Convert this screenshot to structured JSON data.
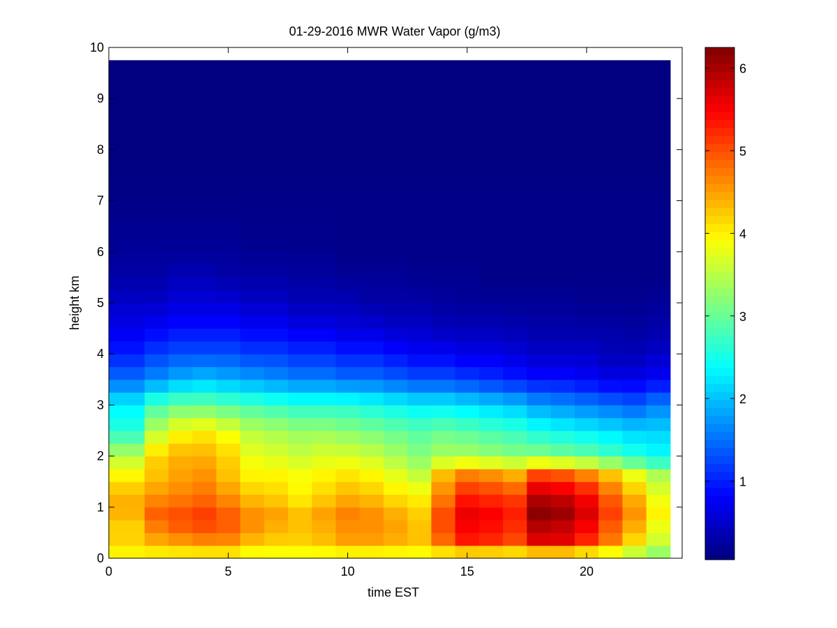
{
  "chart_data": {
    "type": "heatmap",
    "title": "01-29-2016 MWR Water Vapor (g/m3)",
    "xlabel": "time EST",
    "ylabel": "height km",
    "xlim": [
      0,
      24
    ],
    "ylim": [
      0,
      10
    ],
    "xticks": [
      0,
      5,
      10,
      15,
      20
    ],
    "yticks": [
      0,
      1,
      2,
      3,
      4,
      5,
      6,
      7,
      8,
      9,
      10
    ],
    "colormap": "jet",
    "colorbar": {
      "min": 0.05,
      "max": 6.25,
      "ticks": [
        1,
        2,
        3,
        4,
        5,
        6
      ]
    },
    "grid": false,
    "data_extent": {
      "x": [
        0,
        23.5
      ],
      "y": [
        0,
        9.75
      ]
    },
    "time_columns": [
      0,
      1,
      2,
      3,
      4,
      5,
      6,
      7,
      8,
      9,
      10,
      11,
      12,
      13,
      14,
      15,
      16,
      17,
      18,
      19,
      20,
      21,
      22,
      23
    ],
    "profile_heights_km": [
      0.05,
      0.3,
      0.6,
      0.9,
      1.2,
      1.6,
      2.0,
      2.5,
      3.0,
      3.5,
      4.0,
      4.5,
      5.0,
      5.5,
      6.0,
      7.0,
      8.0,
      9.75
    ],
    "values": [
      [
        3.9,
        4.2,
        4.2,
        4.4,
        4.4,
        4.0,
        3.5,
        2.6,
        2.3,
        1.5,
        1.0,
        0.7,
        0.5,
        0.3,
        0.2,
        0.1,
        0.05,
        0.05
      ],
      [
        3.9,
        4.2,
        4.2,
        4.4,
        4.4,
        4.0,
        3.5,
        2.6,
        2.3,
        1.5,
        1.0,
        0.7,
        0.5,
        0.3,
        0.2,
        0.1,
        0.05,
        0.05
      ],
      [
        3.9,
        4.4,
        4.7,
        4.9,
        4.6,
        4.3,
        4.2,
        3.5,
        2.8,
        1.7,
        1.2,
        0.8,
        0.5,
        0.3,
        0.2,
        0.1,
        0.05,
        0.05
      ],
      [
        3.9,
        4.5,
        4.9,
        5.0,
        4.7,
        4.5,
        4.4,
        3.9,
        3.0,
        1.9,
        1.3,
        0.9,
        0.6,
        0.4,
        0.2,
        0.1,
        0.05,
        0.05
      ],
      [
        3.9,
        4.6,
        5.0,
        5.1,
        4.8,
        4.6,
        4.4,
        4.0,
        3.0,
        2.0,
        1.3,
        0.9,
        0.6,
        0.4,
        0.2,
        0.1,
        0.05,
        0.05
      ],
      [
        3.9,
        4.6,
        4.9,
        4.9,
        4.6,
        4.3,
        4.2,
        3.8,
        2.9,
        1.9,
        1.3,
        0.9,
        0.6,
        0.3,
        0.2,
        0.1,
        0.05,
        0.05
      ],
      [
        3.8,
        4.3,
        4.6,
        4.6,
        4.3,
        4.0,
        3.8,
        3.5,
        2.8,
        1.8,
        1.2,
        0.8,
        0.5,
        0.3,
        0.15,
        0.1,
        0.05,
        0.05
      ],
      [
        3.8,
        4.2,
        4.4,
        4.5,
        4.2,
        4.0,
        3.7,
        3.4,
        2.7,
        1.7,
        1.2,
        0.8,
        0.5,
        0.3,
        0.15,
        0.1,
        0.05,
        0.05
      ],
      [
        3.8,
        4.2,
        4.3,
        4.3,
        4.0,
        3.9,
        3.6,
        3.3,
        2.6,
        1.6,
        1.1,
        0.7,
        0.4,
        0.25,
        0.15,
        0.1,
        0.05,
        0.05
      ],
      [
        3.8,
        4.3,
        4.4,
        4.5,
        4.2,
        4.0,
        3.7,
        3.3,
        2.6,
        1.6,
        1.1,
        0.7,
        0.4,
        0.25,
        0.15,
        0.1,
        0.05,
        0.05
      ],
      [
        3.8,
        4.5,
        4.6,
        4.7,
        4.4,
        4.1,
        3.7,
        3.2,
        2.6,
        1.5,
        1.0,
        0.6,
        0.4,
        0.2,
        0.1,
        0.1,
        0.05,
        0.05
      ],
      [
        3.8,
        4.5,
        4.6,
        4.6,
        4.3,
        4.0,
        3.6,
        3.1,
        2.5,
        1.5,
        1.0,
        0.6,
        0.3,
        0.2,
        0.1,
        0.1,
        0.05,
        0.05
      ],
      [
        3.8,
        4.4,
        4.5,
        4.4,
        4.1,
        3.8,
        3.4,
        3.0,
        2.4,
        1.4,
        0.9,
        0.5,
        0.3,
        0.2,
        0.1,
        0.1,
        0.05,
        0.05
      ],
      [
        3.8,
        4.3,
        4.3,
        4.2,
        4.0,
        3.6,
        3.2,
        2.9,
        2.3,
        1.3,
        0.8,
        0.5,
        0.3,
        0.15,
        0.1,
        0.1,
        0.05,
        0.05
      ],
      [
        3.8,
        4.8,
        5.0,
        5.0,
        4.7,
        4.4,
        3.4,
        3.0,
        2.3,
        1.3,
        0.8,
        0.4,
        0.25,
        0.15,
        0.1,
        0.1,
        0.05,
        0.05
      ],
      [
        3.8,
        5.3,
        5.5,
        5.6,
        5.3,
        4.8,
        3.4,
        2.9,
        2.2,
        1.2,
        0.7,
        0.4,
        0.2,
        0.15,
        0.1,
        0.1,
        0.05,
        0.05
      ],
      [
        3.8,
        5.2,
        5.4,
        5.5,
        5.2,
        4.7,
        3.3,
        2.8,
        2.1,
        1.1,
        0.7,
        0.4,
        0.2,
        0.1,
        0.1,
        0.1,
        0.05,
        0.05
      ],
      [
        3.8,
        5.0,
        5.2,
        5.3,
        5.1,
        4.5,
        3.2,
        2.7,
        2.0,
        1.0,
        0.6,
        0.35,
        0.2,
        0.1,
        0.1,
        0.1,
        0.05,
        0.05
      ],
      [
        3.8,
        5.6,
        5.9,
        6.2,
        5.9,
        5.2,
        3.2,
        2.5,
        1.8,
        0.9,
        0.5,
        0.3,
        0.2,
        0.1,
        0.1,
        0.1,
        0.05,
        0.05
      ],
      [
        3.8,
        5.6,
        5.8,
        6.1,
        5.8,
        5.1,
        3.1,
        2.4,
        1.7,
        0.9,
        0.5,
        0.3,
        0.2,
        0.1,
        0.1,
        0.1,
        0.05,
        0.05
      ],
      [
        3.7,
        5.2,
        5.5,
        5.7,
        5.5,
        4.8,
        3.0,
        2.3,
        1.6,
        0.8,
        0.5,
        0.3,
        0.15,
        0.1,
        0.1,
        0.1,
        0.05,
        0.05
      ],
      [
        3.6,
        4.7,
        4.9,
        5.1,
        4.9,
        4.4,
        2.8,
        2.2,
        1.5,
        0.7,
        0.4,
        0.3,
        0.15,
        0.1,
        0.1,
        0.1,
        0.05,
        0.05
      ],
      [
        3.4,
        4.1,
        4.4,
        4.6,
        4.4,
        3.9,
        2.6,
        2.1,
        1.4,
        0.7,
        0.4,
        0.25,
        0.15,
        0.1,
        0.1,
        0.1,
        0.05,
        0.05
      ],
      [
        3.2,
        3.6,
        3.8,
        4.0,
        3.8,
        3.5,
        2.4,
        2.1,
        1.6,
        0.8,
        0.5,
        0.3,
        0.2,
        0.1,
        0.1,
        0.1,
        0.05,
        0.05
      ]
    ]
  }
}
